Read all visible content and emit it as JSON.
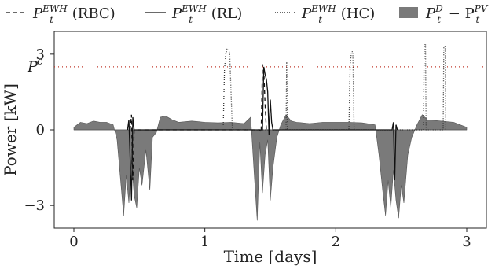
{
  "chart_data": {
    "type": "area",
    "xlabel": "Time [days]",
    "ylabel": "Power [kW]",
    "xlim": [
      -0.15,
      3.15
    ],
    "ylim": [
      -3.9,
      3.9
    ],
    "xticks": [
      0,
      1,
      2,
      3
    ],
    "xtick_labels": [
      "0",
      "1",
      "2",
      "3"
    ],
    "yticks": [
      -3,
      0,
      3
    ],
    "ytick_labels": [
      "−3",
      "0",
      "3"
    ],
    "pc_level": 2.5,
    "pc_label": "P",
    "pc_label_sup": "c",
    "legend_position": "top",
    "legend": [
      {
        "style": "dashed",
        "label_main": "P",
        "label_sub": "t",
        "label_sup": "EWH",
        "label_suffix": "(RBC)"
      },
      {
        "style": "solid",
        "label_main": "P",
        "label_sub": "t",
        "label_sup": "EWH",
        "label_suffix": "(RL)"
      },
      {
        "style": "dotted",
        "label_main": "P",
        "label_sub": "t",
        "label_sup": "EWH",
        "label_suffix": "(HC)"
      },
      {
        "style": "patch",
        "label_main": "P",
        "label_sub": "t",
        "label_sup": "D",
        "label_mid": " − P",
        "label_sub2": "t",
        "label_sup2": "PV"
      }
    ],
    "series": [
      {
        "name": "P_t^D - P_t^PV",
        "color": "#7a7a7a",
        "x": [
          0.0,
          0.05,
          0.1,
          0.15,
          0.2,
          0.25,
          0.3,
          0.33,
          0.36,
          0.38,
          0.4,
          0.42,
          0.44,
          0.46,
          0.48,
          0.5,
          0.52,
          0.55,
          0.58,
          0.6,
          0.63,
          0.66,
          0.7,
          0.75,
          0.8,
          0.9,
          1.0,
          1.1,
          1.2,
          1.3,
          1.35,
          1.38,
          1.4,
          1.42,
          1.44,
          1.46,
          1.48,
          1.5,
          1.52,
          1.55,
          1.58,
          1.62,
          1.66,
          1.7,
          1.8,
          1.9,
          2.0,
          2.1,
          2.2,
          2.3,
          2.33,
          2.36,
          2.38,
          2.4,
          2.42,
          2.44,
          2.46,
          2.48,
          2.5,
          2.52,
          2.55,
          2.58,
          2.62,
          2.66,
          2.7,
          2.8,
          2.9,
          3.0
        ],
        "y": [
          0.1,
          0.3,
          0.25,
          0.35,
          0.3,
          0.3,
          0.2,
          -0.4,
          -2.2,
          -3.4,
          -1.8,
          -2.9,
          -1.2,
          -2.6,
          -3.1,
          -1.5,
          -2.2,
          -0.8,
          -2.4,
          -0.3,
          -0.1,
          0.5,
          0.55,
          0.4,
          0.3,
          0.35,
          0.3,
          0.28,
          0.3,
          0.25,
          0.5,
          -2.0,
          -3.6,
          -0.5,
          -2.5,
          -1.0,
          -0.4,
          -2.8,
          -1.5,
          -0.3,
          0.2,
          0.6,
          0.35,
          0.3,
          0.25,
          0.3,
          0.3,
          0.3,
          0.28,
          0.2,
          -1.0,
          -2.5,
          -3.4,
          -2.0,
          -3.1,
          -1.6,
          -2.8,
          -3.5,
          -2.2,
          -2.9,
          -1.0,
          -0.3,
          0.2,
          0.6,
          0.4,
          0.35,
          0.3,
          0.1
        ]
      },
      {
        "name": "P_t^EWH (RL)",
        "color": "#111111",
        "x": [
          0.41,
          0.42,
          0.44,
          0.45,
          0.46,
          1.44,
          1.45,
          1.46,
          1.47,
          1.48,
          1.49,
          1.5,
          1.51,
          1.52,
          2.43,
          2.44,
          2.45,
          2.46,
          2.47
        ],
        "y": [
          0,
          0.4,
          -2.8,
          0.5,
          0,
          0,
          2.5,
          2.2,
          2.0,
          1.5,
          -0.2,
          1.2,
          0.3,
          0,
          0,
          0.3,
          -2.0,
          0.2,
          0
        ]
      },
      {
        "name": "P_t^EWH (RBC)",
        "color": "#111111",
        "x": [
          0.43,
          0.44,
          0.45,
          0.46,
          1.42,
          1.43,
          1.44,
          1.45,
          1.46,
          1.47
        ],
        "y": [
          0,
          0.6,
          -2.0,
          0,
          0,
          -0.1,
          2.6,
          2.4,
          1.0,
          0
        ],
        "dash": "5,4"
      },
      {
        "name": "P_t^EWH (HC)",
        "color": "#333333",
        "x": [
          1.14,
          1.15,
          1.16,
          1.17,
          1.18,
          1.19,
          1.21,
          1.62,
          1.625,
          1.63,
          2.1,
          2.11,
          2.12,
          2.13,
          2.14,
          2.67,
          2.675,
          2.685,
          2.69,
          2.82,
          2.825,
          2.835,
          2.84
        ],
        "y": [
          0,
          2.4,
          3.0,
          3.2,
          3.2,
          3.0,
          0,
          0,
          2.7,
          0,
          0,
          2.6,
          3.1,
          3.1,
          0,
          0,
          3.4,
          3.4,
          0,
          0,
          3.3,
          3.3,
          0
        ],
        "dash": "1,2"
      }
    ]
  }
}
